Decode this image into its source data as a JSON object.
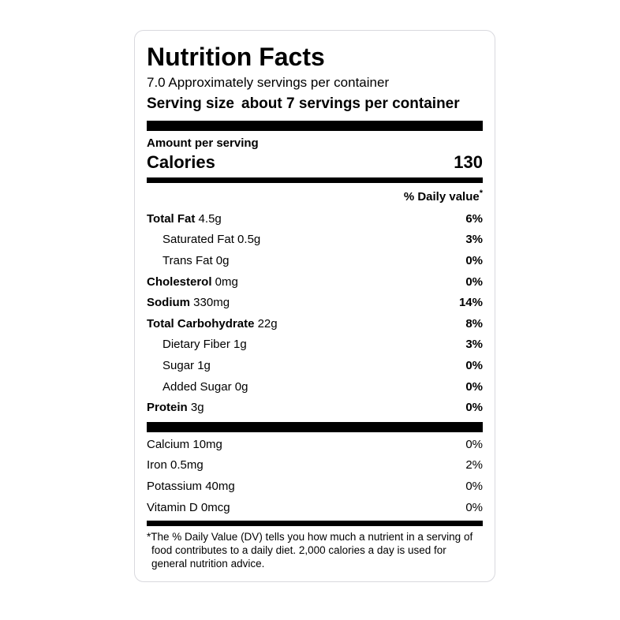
{
  "label": {
    "title": "Nutrition Facts",
    "servings_line": "7.0 Approximately servings per container",
    "serving_size_label": "Serving size",
    "serving_size_value": "about 7 servings per container",
    "amount_per_serving": "Amount per serving",
    "calories_label": "Calories",
    "calories_value": "130",
    "daily_value_header": "% Daily value",
    "daily_value_marker": "*",
    "nutrients": [
      {
        "name": "Total Fat",
        "amount": "4.5g",
        "dv": "6%",
        "bold": true,
        "indent": false
      },
      {
        "name": "Saturated Fat",
        "amount": "0.5g",
        "dv": "3%",
        "bold": false,
        "indent": true
      },
      {
        "name": "Trans Fat",
        "amount": "0g",
        "dv": "0%",
        "bold": false,
        "indent": true
      },
      {
        "name": "Cholesterol",
        "amount": "0mg",
        "dv": "0%",
        "bold": true,
        "indent": false
      },
      {
        "name": "Sodium",
        "amount": "330mg",
        "dv": "14%",
        "bold": true,
        "indent": false
      },
      {
        "name": "Total Carbohydrate",
        "amount": "22g",
        "dv": "8%",
        "bold": true,
        "indent": false
      },
      {
        "name": "Dietary Fiber",
        "amount": "1g",
        "dv": "3%",
        "bold": false,
        "indent": true
      },
      {
        "name": "Sugar",
        "amount": "1g",
        "dv": "0%",
        "bold": false,
        "indent": true
      },
      {
        "name": "Added Sugar",
        "amount": "0g",
        "dv": "0%",
        "bold": false,
        "indent": true
      },
      {
        "name": "Protein",
        "amount": "3g",
        "dv": "0%",
        "bold": true,
        "indent": false
      }
    ],
    "micronutrients": [
      {
        "name": "Calcium",
        "amount": "10mg",
        "dv": "0%"
      },
      {
        "name": "Iron",
        "amount": "0.5mg",
        "dv": "2%"
      },
      {
        "name": "Potassium",
        "amount": "40mg",
        "dv": "0%"
      },
      {
        "name": "Vitamin D",
        "amount": "0mcg",
        "dv": "0%"
      }
    ],
    "footnote_marker": "*",
    "footnote_text": "The % Daily Value (DV) tells you how much a nutrient in a serving of food contributes to a daily diet. 2,000 calories a day is used for general nutrition advice."
  },
  "colors": {
    "text": "#000000",
    "background": "#ffffff",
    "card_border": "#d9d9de",
    "divider_bar": "#000000"
  }
}
